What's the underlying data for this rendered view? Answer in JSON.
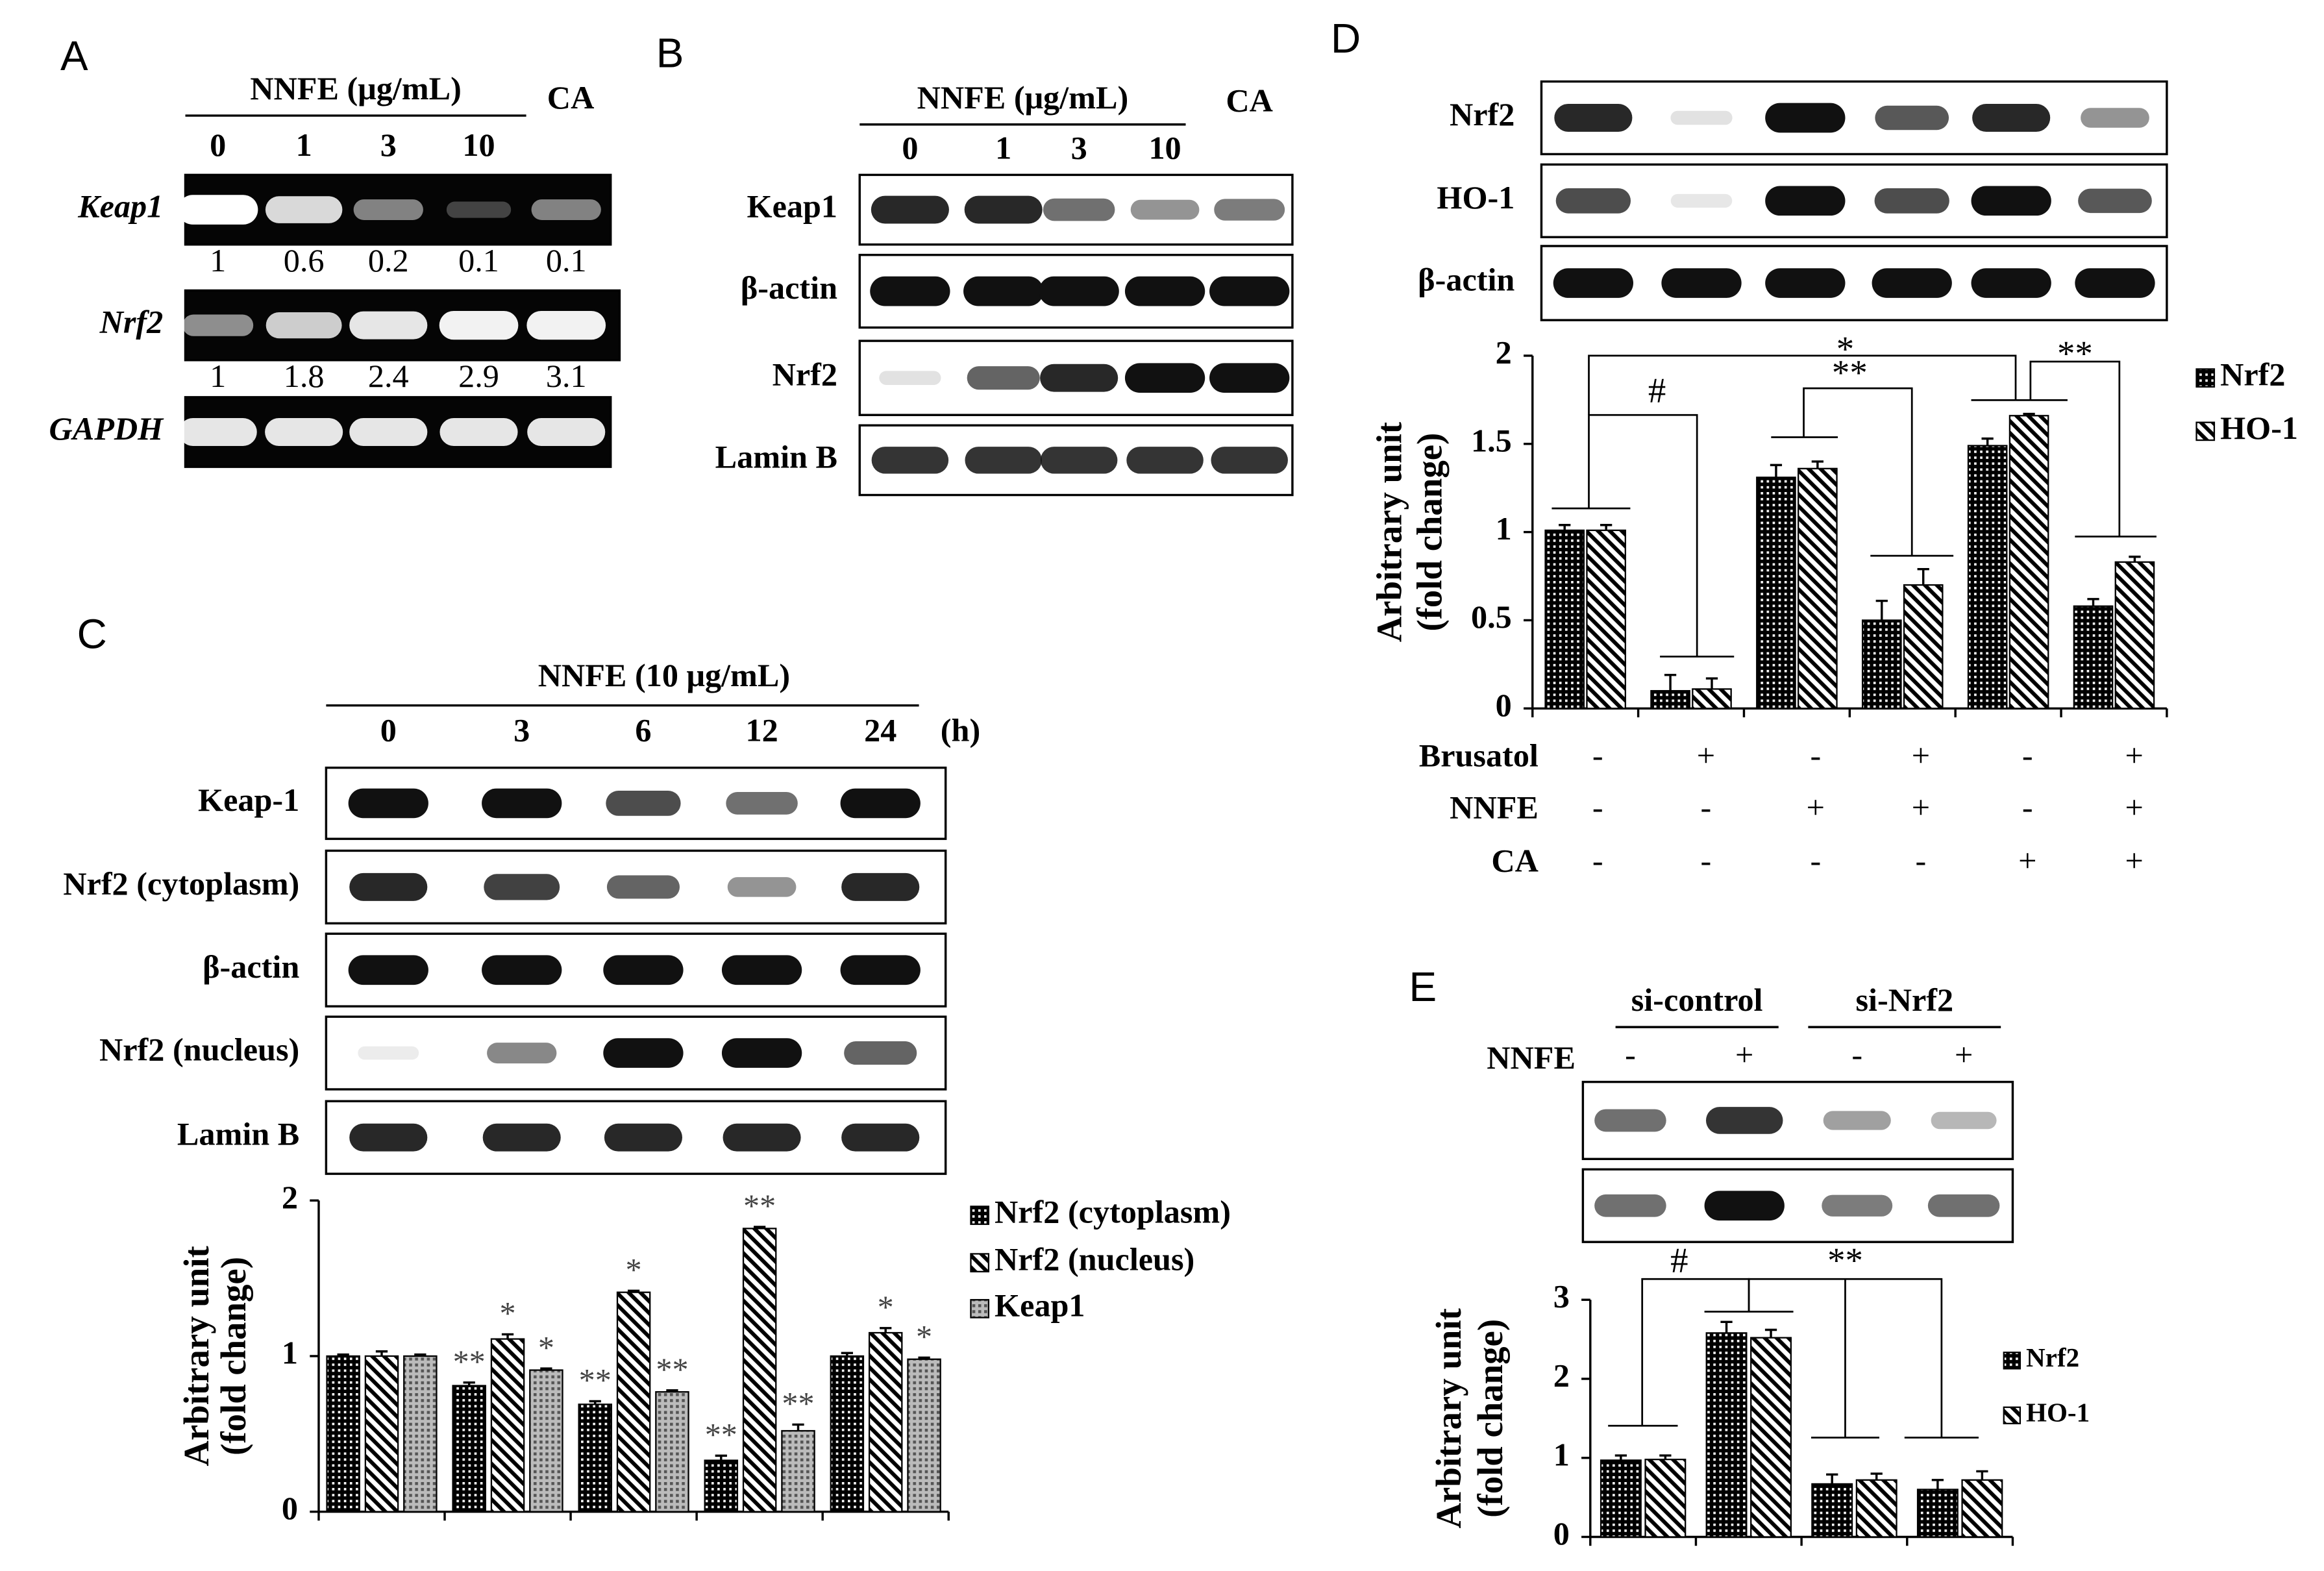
{
  "panels": {
    "A": {
      "label": "A",
      "header": "NNFE  (μg/mL)",
      "lanes": [
        "0",
        "1",
        "3",
        "10"
      ],
      "extra_lane": "CA",
      "rows": [
        {
          "name": "Keap1",
          "quant": [
            1,
            0.6,
            0.2,
            0.1,
            0.1
          ]
        },
        {
          "name": "Nrf2",
          "quant": [
            1,
            1.8,
            2.4,
            2.9,
            3.1
          ]
        },
        {
          "name": "GAPDH"
        }
      ]
    },
    "B": {
      "label": "B",
      "header": "NNFE (μg/mL)",
      "lanes": [
        "0",
        "1",
        "3",
        "10"
      ],
      "extra_lane": "CA",
      "rows": [
        "Keap1",
        "β-actin",
        "Nrf2",
        "Lamin B"
      ]
    },
    "C": {
      "label": "C",
      "header": "NNFE (10 μg/mL)",
      "lanes": [
        "0",
        "3",
        "6",
        "12",
        "24"
      ],
      "unit": "(h)",
      "rows": [
        "Keap-1",
        "Nrf2 (cytoplasm)",
        "β-actin",
        "Nrf2 (nucleus)",
        "Lamin B"
      ]
    },
    "D": {
      "label": "D",
      "rows": [
        "Nrf2",
        "HO-1",
        "β-actin"
      ],
      "treatments": [
        {
          "name": "Brusatol",
          "signs": [
            "-",
            "+",
            "-",
            "+",
            "-",
            "+"
          ]
        },
        {
          "name": "NNFE",
          "signs": [
            "-",
            "-",
            "+",
            "+",
            "-",
            "+"
          ]
        },
        {
          "name": "CA",
          "signs": [
            "-",
            "-",
            "-",
            "-",
            "+",
            "+"
          ]
        }
      ]
    },
    "E": {
      "label": "E",
      "groups": [
        "si-control",
        "si-Nrf2"
      ],
      "treatment": "NNFE",
      "signs": [
        "-",
        "+",
        "-",
        "+"
      ]
    }
  },
  "chart_data": [
    {
      "type": "bar",
      "ylabel": [
        "Arbitrary unit",
        "(fold change)"
      ],
      "categories": [
        null,
        null,
        null,
        null,
        null
      ],
      "series": [
        {
          "name": "Nrf2 (cytoplasm)",
          "color": "#000000",
          "values": [
            1.0,
            0.81,
            0.69,
            0.33,
            1.0
          ],
          "errors": [
            0.01,
            0.02,
            0.02,
            0.03,
            0.02
          ],
          "annotations": [
            null,
            "**",
            "**",
            "**",
            null
          ]
        },
        {
          "name": "Nrf2 (nucleus)",
          "color": "#000000",
          "values": [
            1.0,
            1.11,
            1.41,
            1.82,
            1.15
          ],
          "errors": [
            0.03,
            0.03,
            0.01,
            0.01,
            0.03
          ],
          "annotations": [
            null,
            "*",
            "*",
            "**",
            "*"
          ]
        },
        {
          "name": "Keap1",
          "color": "#555555",
          "values": [
            1.0,
            0.91,
            0.77,
            0.52,
            0.98
          ],
          "errors": [
            0.01,
            0.01,
            0.01,
            0.04,
            0.01
          ],
          "annotations": [
            null,
            "*",
            "**",
            "**",
            "*"
          ]
        }
      ],
      "ylim": [
        0,
        2
      ],
      "yticks": [
        0,
        1,
        2
      ]
    },
    {
      "type": "bar",
      "ylabel": [
        "Arbitrary  unit",
        "(fold change)"
      ],
      "categories": [
        null,
        null,
        null,
        null,
        null,
        null
      ],
      "series": [
        {
          "name": "Nrf2",
          "color": "#000000",
          "values": [
            1.01,
            0.1,
            1.31,
            0.5,
            1.49,
            0.58
          ],
          "errors": [
            0.03,
            0.09,
            0.07,
            0.11,
            0.04,
            0.04
          ]
        },
        {
          "name": "HO-1",
          "color": "#000000",
          "values": [
            1.01,
            0.11,
            1.36,
            0.7,
            1.66,
            0.83
          ],
          "errors": [
            0.03,
            0.06,
            0.04,
            0.09,
            0.01,
            0.03
          ]
        }
      ],
      "bracket_labels": [
        "#",
        "*",
        "**",
        "**"
      ],
      "ylim": [
        0,
        2
      ],
      "yticks": [
        0,
        0.5,
        1,
        1.5,
        2
      ]
    },
    {
      "type": "bar",
      "ylabel": [
        "Arbitrary unit",
        "(fold change)"
      ],
      "categories": [
        null,
        null,
        null,
        null
      ],
      "series": [
        {
          "name": "Nrf2",
          "color": "#000000",
          "values": [
            0.97,
            2.58,
            0.67,
            0.6
          ],
          "errors": [
            0.06,
            0.14,
            0.12,
            0.12
          ]
        },
        {
          "name": "HO-1",
          "color": "#000000",
          "values": [
            0.98,
            2.52,
            0.72,
            0.72
          ],
          "errors": [
            0.05,
            0.1,
            0.08,
            0.11
          ]
        }
      ],
      "bracket_labels": [
        "#",
        "**"
      ],
      "ylim": [
        0,
        3
      ],
      "yticks": [
        0,
        1,
        2,
        3
      ]
    }
  ]
}
